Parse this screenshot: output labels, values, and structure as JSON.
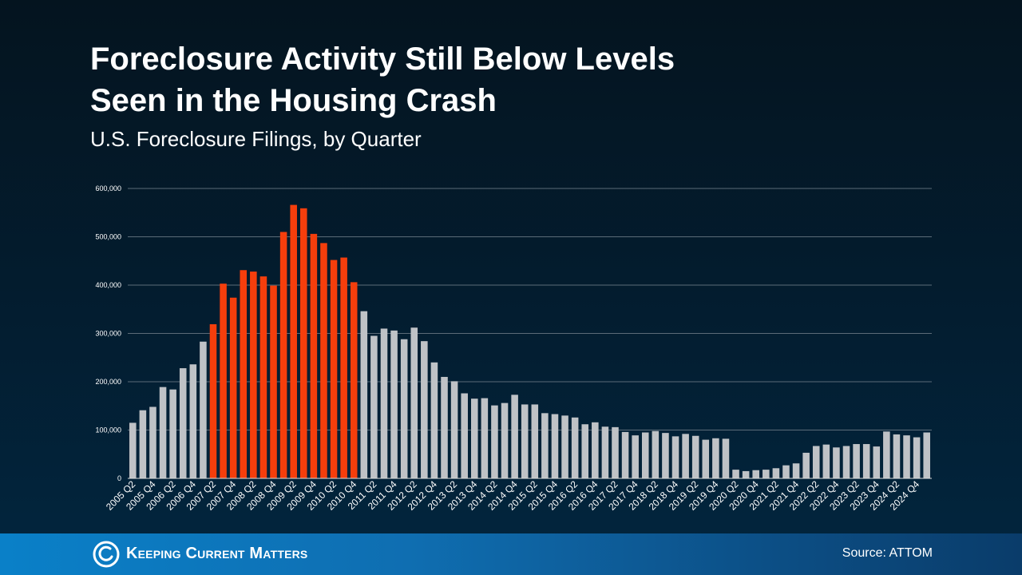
{
  "header": {
    "title_line1": "Foreclosure Activity Still Below Levels",
    "title_line2": "Seen in the Housing Crash",
    "subtitle": "U.S. Foreclosure Filings, by Quarter"
  },
  "footer": {
    "logo_text": "Keeping Current Matters",
    "source": "Source: ATTOM"
  },
  "colors": {
    "highlight": "#f53e0c",
    "normal": "#bfc2c6",
    "grid": "#5b6b78",
    "tick_text": "#ffffff"
  },
  "chart_data": {
    "type": "bar",
    "title": "U.S. Foreclosure Filings, by Quarter",
    "xlabel": "",
    "ylabel": "",
    "ylim": [
      0,
      600000
    ],
    "yticks": [
      "0",
      "100,000",
      "200,000",
      "300,000",
      "400,000",
      "500,000",
      "600,000"
    ],
    "grid": true,
    "categories": [
      "2005 Q2",
      "2005 Q3",
      "2005 Q4",
      "2006 Q1",
      "2006 Q2",
      "2006 Q3",
      "2006 Q4",
      "2007 Q1",
      "2007 Q2",
      "2007 Q3",
      "2007 Q4",
      "2008 Q1",
      "2008 Q2",
      "2008 Q3",
      "2008 Q4",
      "2009 Q1",
      "2009 Q2",
      "2009 Q3",
      "2009 Q4",
      "2010 Q1",
      "2010 Q2",
      "2010 Q3",
      "2010 Q4",
      "2011 Q1",
      "2011 Q2",
      "2011 Q3",
      "2011 Q4",
      "2012 Q1",
      "2012 Q2",
      "2012 Q3",
      "2012 Q4",
      "2013 Q1",
      "2013 Q2",
      "2013 Q3",
      "2013 Q4",
      "2014 Q1",
      "2014 Q2",
      "2014 Q3",
      "2014 Q4",
      "2015 Q1",
      "2015 Q2",
      "2015 Q3",
      "2015 Q4",
      "2016 Q1",
      "2016 Q2",
      "2016 Q3",
      "2016 Q4",
      "2017 Q1",
      "2017 Q2",
      "2017 Q3",
      "2017 Q4",
      "2018 Q1",
      "2018 Q2",
      "2018 Q3",
      "2018 Q4",
      "2019 Q1",
      "2019 Q2",
      "2019 Q3",
      "2019 Q4",
      "2020 Q1",
      "2020 Q2",
      "2020 Q3",
      "2020 Q4",
      "2021 Q1",
      "2021 Q2",
      "2021 Q3",
      "2021 Q4",
      "2022 Q1",
      "2022 Q2",
      "2022 Q3",
      "2022 Q4",
      "2023 Q1",
      "2023 Q2",
      "2023 Q3",
      "2023 Q4",
      "2024 Q1",
      "2024 Q2",
      "2024 Q3",
      "2024 Q4",
      "2025 Q1"
    ],
    "labeled_categories": [
      "2005 Q2",
      "2005 Q4",
      "2006 Q2",
      "2006 Q4",
      "2007 Q2",
      "2007 Q4",
      "2008 Q2",
      "2008 Q4",
      "2009 Q2",
      "2009 Q4",
      "2010 Q2",
      "2010 Q4",
      "2011 Q2",
      "2011 Q4",
      "2012 Q2",
      "2012 Q4",
      "2013 Q2",
      "2013 Q4",
      "2014 Q2",
      "2014 Q4",
      "2015 Q2",
      "2015 Q4",
      "2016 Q2",
      "2016 Q4",
      "2017 Q2",
      "2017 Q4",
      "2018 Q2",
      "2018 Q4",
      "2019 Q2",
      "2019 Q4",
      "2020 Q2",
      "2020 Q4",
      "2021 Q2",
      "2021 Q4",
      "2022 Q2",
      "2022 Q4",
      "2023 Q2",
      "2023 Q4",
      "2024 Q2",
      "2024 Q4"
    ],
    "values": [
      115000,
      141000,
      148000,
      189000,
      184000,
      228000,
      236000,
      283000,
      319000,
      403000,
      374000,
      431000,
      428000,
      418000,
      399000,
      510000,
      566000,
      559000,
      506000,
      487000,
      452000,
      457000,
      406000,
      346000,
      295000,
      310000,
      306000,
      288000,
      312000,
      284000,
      240000,
      210000,
      201000,
      176000,
      165000,
      166000,
      151000,
      156000,
      173000,
      153000,
      153000,
      135000,
      133000,
      130000,
      126000,
      112000,
      116000,
      107000,
      106000,
      96000,
      89000,
      95000,
      98000,
      94000,
      87000,
      92000,
      88000,
      80000,
      83000,
      82000,
      18000,
      15000,
      17000,
      18000,
      21000,
      27000,
      31000,
      53000,
      67000,
      70000,
      64000,
      67000,
      71000,
      71000,
      66000,
      97000,
      91000,
      89000,
      85000,
      95000
    ],
    "highlight_range": [
      "2007 Q2",
      "2010 Q4"
    ]
  }
}
